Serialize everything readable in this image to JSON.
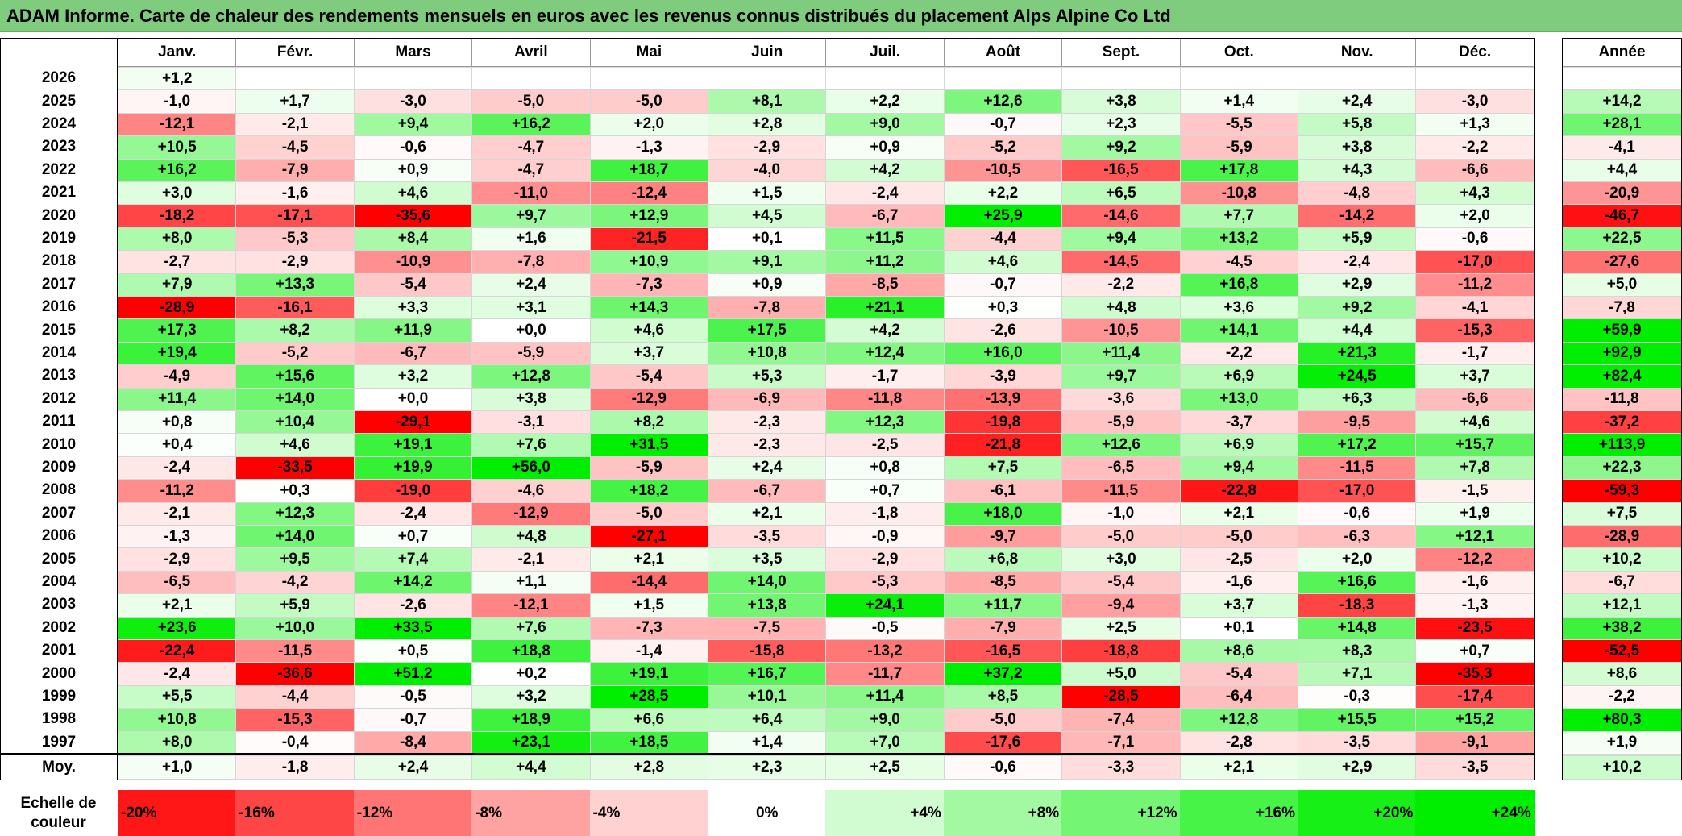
{
  "title": "ADAM Informe. Carte de chaleur des rendements mensuels en euros avec les revenus connus distribués du placement Alps Alpine Co Ltd",
  "months": [
    "Janv.",
    "Févr.",
    "Mars",
    "Avril",
    "Mai",
    "Juin",
    "Juil.",
    "Août",
    "Sept.",
    "Oct.",
    "Nov.",
    "Déc."
  ],
  "annual_header": "Année",
  "avg_label": "Moy.",
  "scale_label_line1": "Echelle de",
  "scale_label_line2": "couleur",
  "scale": [
    {
      "label": "-20%",
      "value": -20,
      "align": "left"
    },
    {
      "label": "-16%",
      "value": -16,
      "align": "left"
    },
    {
      "label": "-12%",
      "value": -12,
      "align": "left"
    },
    {
      "label": "-8%",
      "value": -8,
      "align": "left"
    },
    {
      "label": "-4%",
      "value": -4,
      "align": "left"
    },
    {
      "label": "0%",
      "value": 0,
      "align": "center"
    },
    {
      "label": "+4%",
      "value": 4,
      "align": "right"
    },
    {
      "label": "+8%",
      "value": 8,
      "align": "right"
    },
    {
      "label": "+12%",
      "value": 12,
      "align": "right"
    },
    {
      "label": "+16%",
      "value": 16,
      "align": "right"
    },
    {
      "label": "+20%",
      "value": 20,
      "align": "right"
    },
    {
      "label": "+24%",
      "value": 24,
      "align": "right"
    }
  ],
  "colors": {
    "neg_max": "#ff0000",
    "pos_max": "#00ee00",
    "neutral": "#ffffff",
    "title_bar": "#80cc7e"
  },
  "chart_data": {
    "type": "heatmap",
    "title": "ADAM Informe. Carte de chaleur des rendements mensuels en euros avec les revenus connus distribués du placement Alps Alpine Co Ltd",
    "columns": [
      "Janv.",
      "Févr.",
      "Mars",
      "Avril",
      "Mai",
      "Juin",
      "Juil.",
      "Août",
      "Sept.",
      "Oct.",
      "Nov.",
      "Déc."
    ],
    "rows": [
      {
        "year": "2026",
        "values": [
          "+1,2",
          null,
          null,
          null,
          null,
          null,
          null,
          null,
          null,
          null,
          null,
          null
        ],
        "annual": null
      },
      {
        "year": "2025",
        "values": [
          "-1,0",
          "+1,7",
          "-3,0",
          "-5,0",
          "-5,0",
          "+8,1",
          "+2,2",
          "+12,6",
          "+3,8",
          "+1,4",
          "+2,4",
          "-3,0"
        ],
        "annual": "+14,2"
      },
      {
        "year": "2024",
        "values": [
          "-12,1",
          "-2,1",
          "+9,4",
          "+16,2",
          "+2,0",
          "+2,8",
          "+9,0",
          "-0,7",
          "+2,3",
          "-5,5",
          "+5,8",
          "+1,3"
        ],
        "annual": "+28,1"
      },
      {
        "year": "2023",
        "values": [
          "+10,5",
          "-4,5",
          "-0,6",
          "-4,7",
          "-1,3",
          "-2,9",
          "+0,9",
          "-5,2",
          "+9,2",
          "-5,9",
          "+3,8",
          "-2,2"
        ],
        "annual": "-4,1"
      },
      {
        "year": "2022",
        "values": [
          "+16,2",
          "-7,9",
          "+0,9",
          "-4,7",
          "+18,7",
          "-4,0",
          "+4,2",
          "-10,5",
          "-16,5",
          "+17,8",
          "+4,3",
          "-6,6"
        ],
        "annual": "+4,4"
      },
      {
        "year": "2021",
        "values": [
          "+3,0",
          "-1,6",
          "+4,6",
          "-11,0",
          "-12,4",
          "+1,5",
          "-2,4",
          "+2,2",
          "+6,5",
          "-10,8",
          "-4,8",
          "+4,3"
        ],
        "annual": "-20,9"
      },
      {
        "year": "2020",
        "values": [
          "-18,2",
          "-17,1",
          "-35,6",
          "+9,7",
          "+12,9",
          "+4,5",
          "-6,7",
          "+25,9",
          "-14,6",
          "+7,7",
          "-14,2",
          "+2,0"
        ],
        "annual": "-46,7"
      },
      {
        "year": "2019",
        "values": [
          "+8,0",
          "-5,3",
          "+8,4",
          "+1,6",
          "-21,5",
          "+0,1",
          "+11,5",
          "-4,4",
          "+9,4",
          "+13,2",
          "+5,9",
          "-0,6"
        ],
        "annual": "+22,5"
      },
      {
        "year": "2018",
        "values": [
          "-2,7",
          "-2,9",
          "-10,9",
          "-7,8",
          "+10,9",
          "+9,1",
          "+11,2",
          "+4,6",
          "-14,5",
          "-4,5",
          "-2,4",
          "-17,0"
        ],
        "annual": "-27,6"
      },
      {
        "year": "2017",
        "values": [
          "+7,9",
          "+13,3",
          "-5,4",
          "+2,4",
          "-7,3",
          "+0,9",
          "-8,5",
          "-0,7",
          "-2,2",
          "+16,8",
          "+2,9",
          "-11,2"
        ],
        "annual": "+5,0"
      },
      {
        "year": "2016",
        "values": [
          "-28,9",
          "-16,1",
          "+3,3",
          "+3,1",
          "+14,3",
          "-7,8",
          "+21,1",
          "+0,3",
          "+4,8",
          "+3,6",
          "+9,2",
          "-4,1"
        ],
        "annual": "-7,8"
      },
      {
        "year": "2015",
        "values": [
          "+17,3",
          "+8,2",
          "+11,9",
          "+0,0",
          "+4,6",
          "+17,5",
          "+4,2",
          "-2,6",
          "-10,5",
          "+14,1",
          "+4,4",
          "-15,3"
        ],
        "annual": "+59,9"
      },
      {
        "year": "2014",
        "values": [
          "+19,4",
          "-5,2",
          "-6,7",
          "-5,9",
          "+3,7",
          "+10,8",
          "+12,4",
          "+16,0",
          "+11,4",
          "-2,2",
          "+21,3",
          "-1,7"
        ],
        "annual": "+92,9"
      },
      {
        "year": "2013",
        "values": [
          "-4,9",
          "+15,6",
          "+3,2",
          "+12,8",
          "-5,4",
          "+5,3",
          "-1,7",
          "-3,9",
          "+9,7",
          "+6,9",
          "+24,5",
          "+3,7"
        ],
        "annual": "+82,4"
      },
      {
        "year": "2012",
        "values": [
          "+11,4",
          "+14,0",
          "+0,0",
          "+3,8",
          "-12,9",
          "-6,9",
          "-11,8",
          "-13,9",
          "-3,6",
          "+13,0",
          "+6,3",
          "-6,6"
        ],
        "annual": "-11,8"
      },
      {
        "year": "2011",
        "values": [
          "+0,8",
          "+10,4",
          "-29,1",
          "-3,1",
          "+8,2",
          "-2,3",
          "+12,3",
          "-19,8",
          "-5,9",
          "-3,7",
          "-9,5",
          "+4,6"
        ],
        "annual": "-37,2"
      },
      {
        "year": "2010",
        "values": [
          "+0,4",
          "+4,6",
          "+19,1",
          "+7,6",
          "+31,5",
          "-2,3",
          "-2,5",
          "-21,8",
          "+12,6",
          "+6,9",
          "+17,2",
          "+15,7"
        ],
        "annual": "+113,9"
      },
      {
        "year": "2009",
        "values": [
          "-2,4",
          "-33,5",
          "+19,9",
          "+56,0",
          "-5,9",
          "+2,4",
          "+0,8",
          "+7,5",
          "-6,5",
          "+9,4",
          "-11,5",
          "+7,8"
        ],
        "annual": "+22,3"
      },
      {
        "year": "2008",
        "values": [
          "-11,2",
          "+0,3",
          "-19,0",
          "-4,6",
          "+18,2",
          "-6,7",
          "+0,7",
          "-6,1",
          "-11,5",
          "-22,8",
          "-17,0",
          "-1,5"
        ],
        "annual": "-59,3"
      },
      {
        "year": "2007",
        "values": [
          "-2,1",
          "+12,3",
          "-2,4",
          "-12,9",
          "-5,0",
          "+2,1",
          "-1,8",
          "+18,0",
          "-1,0",
          "+2,1",
          "-0,6",
          "+1,9"
        ],
        "annual": "+7,5"
      },
      {
        "year": "2006",
        "values": [
          "-1,3",
          "+14,0",
          "+0,7",
          "+4,8",
          "-27,1",
          "-3,5",
          "-0,9",
          "-9,7",
          "-5,0",
          "-5,0",
          "-6,3",
          "+12,1"
        ],
        "annual": "-28,9"
      },
      {
        "year": "2005",
        "values": [
          "-2,9",
          "+9,5",
          "+7,4",
          "-2,1",
          "+2,1",
          "+3,5",
          "-2,9",
          "+6,8",
          "+3,0",
          "-2,5",
          "+2,0",
          "-12,2"
        ],
        "annual": "+10,2"
      },
      {
        "year": "2004",
        "values": [
          "-6,5",
          "-4,2",
          "+14,2",
          "+1,1",
          "-14,4",
          "+14,0",
          "-5,3",
          "-8,5",
          "-5,4",
          "-1,6",
          "+16,6",
          "-1,6"
        ],
        "annual": "-6,7"
      },
      {
        "year": "2003",
        "values": [
          "+2,1",
          "+5,9",
          "-2,6",
          "-12,1",
          "+1,5",
          "+13,8",
          "+24,1",
          "+11,7",
          "-9,4",
          "+3,7",
          "-18,3",
          "-1,3"
        ],
        "annual": "+12,1"
      },
      {
        "year": "2002",
        "values": [
          "+23,6",
          "+10,0",
          "+33,5",
          "+7,6",
          "-7,3",
          "-7,5",
          "-0,5",
          "-7,9",
          "+2,5",
          "+0,1",
          "+14,8",
          "-23,5"
        ],
        "annual": "+38,2"
      },
      {
        "year": "2001",
        "values": [
          "-22,4",
          "-11,5",
          "+0,5",
          "+18,8",
          "-1,4",
          "-15,8",
          "-13,2",
          "-16,5",
          "-18,8",
          "+8,6",
          "+8,3",
          "+0,7"
        ],
        "annual": "-52,5"
      },
      {
        "year": "2000",
        "values": [
          "-2,4",
          "-36,6",
          "+51,2",
          "+0,2",
          "+19,1",
          "+16,7",
          "-11,7",
          "+37,2",
          "+5,0",
          "-5,4",
          "+7,1",
          "-35,3"
        ],
        "annual": "+8,6"
      },
      {
        "year": "1999",
        "values": [
          "+5,5",
          "-4,4",
          "-0,5",
          "+3,2",
          "+28,5",
          "+10,1",
          "+11,4",
          "+8,5",
          "-28,5",
          "-6,4",
          "-0,3",
          "-17,4"
        ],
        "annual": "-2,2"
      },
      {
        "year": "1998",
        "values": [
          "+10,8",
          "-15,3",
          "-0,7",
          "+18,9",
          "+6,6",
          "+6,4",
          "+9,0",
          "-5,0",
          "-7,4",
          "+12,8",
          "+15,5",
          "+15,2"
        ],
        "annual": "+80,3"
      },
      {
        "year": "1997",
        "values": [
          "+8,0",
          "-0,4",
          "-8,4",
          "+23,1",
          "+18,5",
          "+1,4",
          "+7,0",
          "-17,6",
          "-7,1",
          "-2,8",
          "-3,5",
          "-9,1"
        ],
        "annual": "+1,9"
      }
    ],
    "averages": [
      "+1,0",
      "-1,8",
      "+2,4",
      "+4,4",
      "+2,8",
      "+2,3",
      "+2,5",
      "-0,6",
      "-3,3",
      "+2,1",
      "+2,9",
      "-3,5"
    ],
    "annual_average": "+10,2",
    "color_scale_range": [
      -20,
      24
    ]
  }
}
